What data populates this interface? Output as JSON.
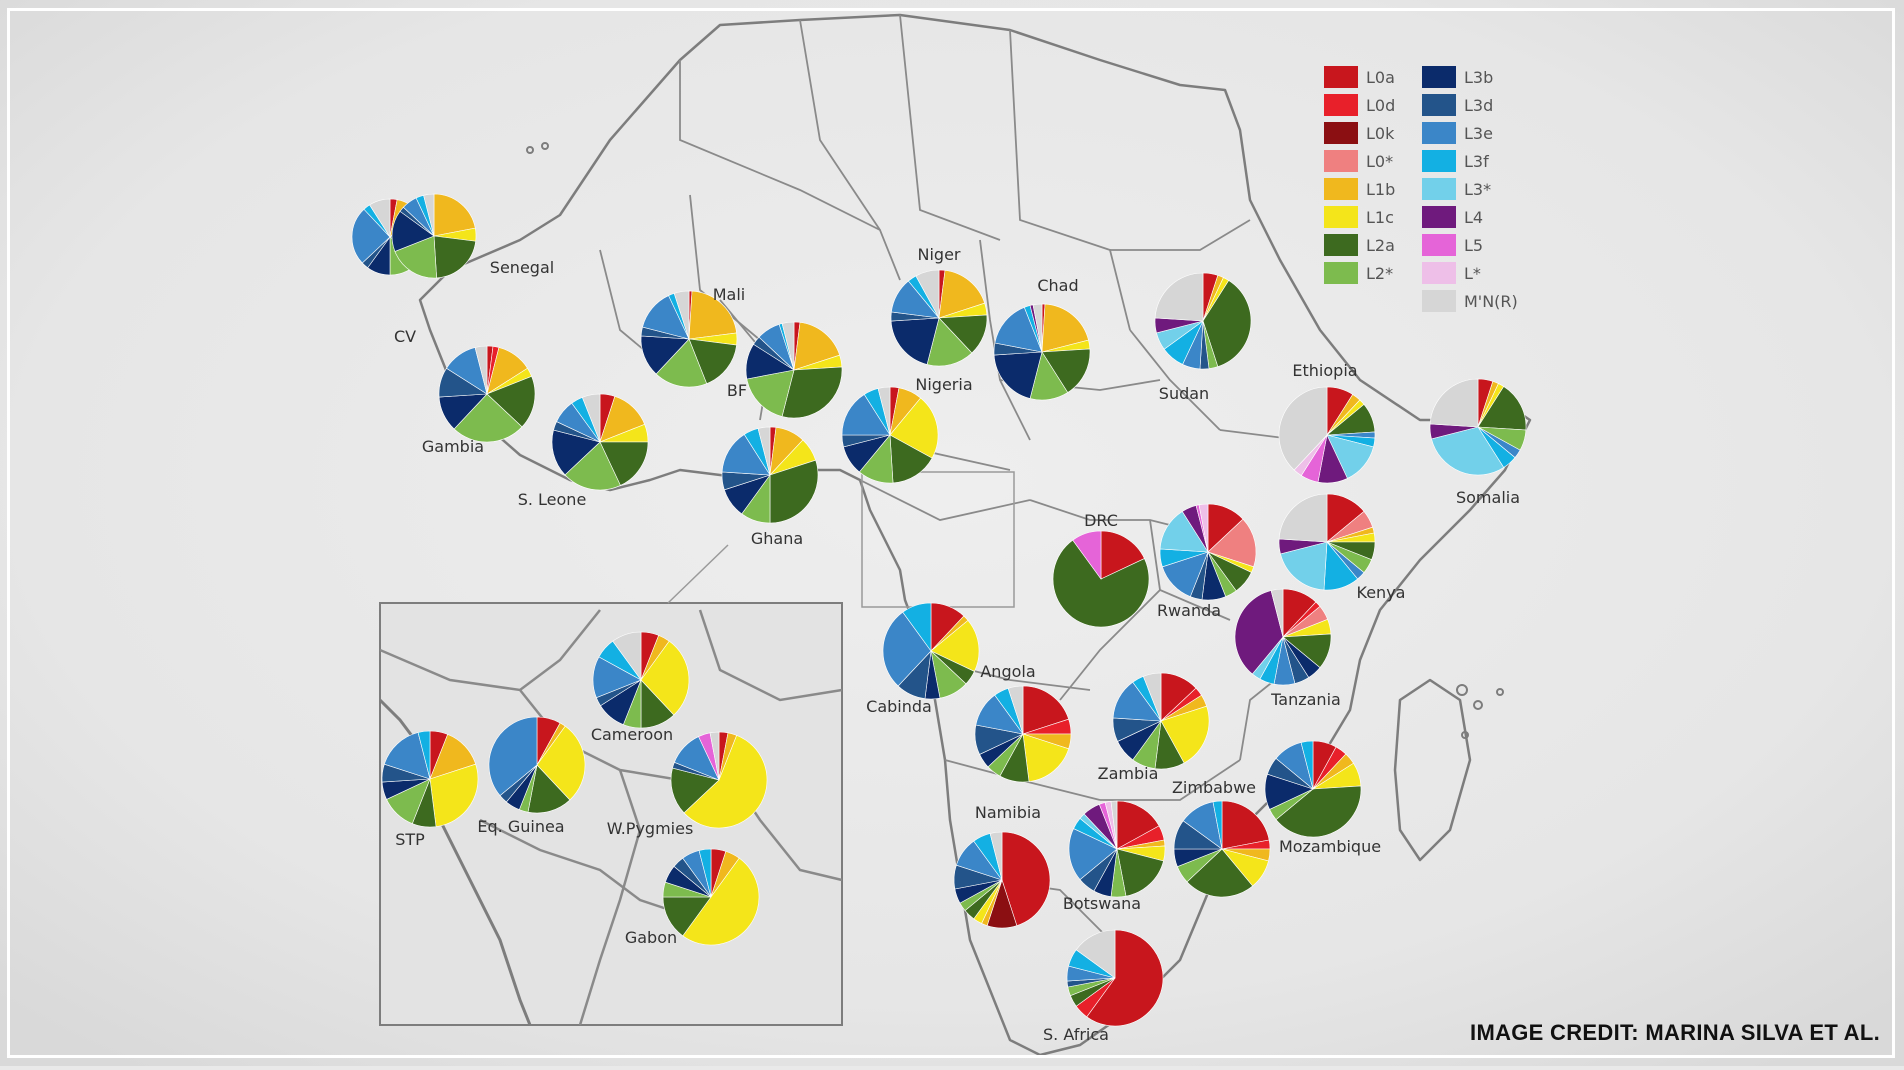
{
  "credit": "IMAGE CREDIT: MARINA SILVA ET AL.",
  "legend": [
    {
      "label": "L0a",
      "color": "#c8161d"
    },
    {
      "label": "L0d",
      "color": "#e8202a"
    },
    {
      "label": "L0k",
      "color": "#8b0f12"
    },
    {
      "label": "L0*",
      "color": "#ef8080"
    },
    {
      "label": "L1b",
      "color": "#f0b81e"
    },
    {
      "label": "L1c",
      "color": "#f4e51a"
    },
    {
      "label": "L2a",
      "color": "#3d6a1f"
    },
    {
      "label": "L2*",
      "color": "#7dbb4e"
    },
    {
      "label": "L3b",
      "color": "#0b2b6b"
    },
    {
      "label": "L3d",
      "color": "#23548a"
    },
    {
      "label": "L3e",
      "color": "#3b86c8"
    },
    {
      "label": "L3f",
      "color": "#13b0e3"
    },
    {
      "label": "L3*",
      "color": "#72d0ea"
    },
    {
      "label": "L4",
      "color": "#6f1a7d"
    },
    {
      "label": "L5",
      "color": "#e564d8"
    },
    {
      "label": "L*",
      "color": "#eebfe8"
    },
    {
      "label": "M'N(R)",
      "color": "#d6d6d6"
    }
  ],
  "regions": [
    {
      "label": "CV",
      "values": [
        3,
        0,
        0,
        0,
        10,
        5,
        17,
        15,
        10,
        3,
        25,
        3,
        0,
        0,
        0,
        0,
        9
      ]
    },
    {
      "label": "Senegal",
      "values": [
        0,
        0,
        0,
        0,
        22,
        5,
        22,
        20,
        16,
        2,
        6,
        3,
        0,
        0,
        0,
        0,
        4
      ]
    },
    {
      "label": "Gambia",
      "values": [
        2,
        2,
        0,
        0,
        12,
        3,
        18,
        25,
        12,
        10,
        12,
        0,
        0,
        0,
        0,
        0,
        4
      ]
    },
    {
      "label": "Mali",
      "values": [
        1,
        0,
        0,
        0,
        22,
        4,
        17,
        18,
        14,
        3,
        14,
        2,
        0,
        0,
        0,
        0,
        5
      ]
    },
    {
      "label": "BF",
      "values": [
        2,
        0,
        0,
        0,
        18,
        4,
        30,
        18,
        12,
        3,
        8,
        1,
        0,
        0,
        0,
        0,
        4
      ]
    },
    {
      "label": "Niger",
      "values": [
        2,
        0,
        0,
        0,
        18,
        4,
        14,
        16,
        20,
        3,
        12,
        3,
        0,
        0,
        0,
        0,
        8
      ]
    },
    {
      "label": "Chad",
      "values": [
        1,
        0,
        0,
        0,
        20,
        3,
        17,
        13,
        20,
        4,
        16,
        2,
        0,
        1,
        0,
        0,
        3
      ]
    },
    {
      "label": "S. Leone",
      "values": [
        5,
        0,
        0,
        0,
        14,
        6,
        18,
        20,
        16,
        3,
        8,
        4,
        0,
        0,
        0,
        0,
        6
      ]
    },
    {
      "label": "Ghana",
      "values": [
        2,
        0,
        0,
        0,
        10,
        8,
        30,
        10,
        10,
        6,
        15,
        5,
        0,
        0,
        0,
        0,
        4
      ]
    },
    {
      "label": "Nigeria",
      "values": [
        3,
        0,
        0,
        0,
        8,
        22,
        16,
        12,
        10,
        4,
        16,
        5,
        0,
        0,
        0,
        0,
        4
      ]
    },
    {
      "label": "Sudan",
      "values": [
        5,
        0,
        0,
        0,
        2,
        2,
        36,
        3,
        0,
        3,
        6,
        8,
        6,
        5,
        0,
        0,
        24
      ]
    },
    {
      "label": "Ethiopia",
      "values": [
        9,
        0,
        0,
        0,
        3,
        2,
        10,
        0,
        0,
        0,
        2,
        3,
        14,
        10,
        6,
        3,
        38
      ]
    },
    {
      "label": "Somalia",
      "values": [
        5,
        0,
        0,
        0,
        2,
        2,
        17,
        7,
        0,
        0,
        3,
        5,
        30,
        5,
        0,
        0,
        24
      ]
    },
    {
      "label": "DRC",
      "values": [
        18,
        0,
        0,
        0,
        0,
        0,
        72,
        0,
        0,
        0,
        0,
        0,
        0,
        0,
        10,
        0,
        0
      ]
    },
    {
      "label": "Rwanda",
      "values": [
        13,
        0,
        0,
        17,
        0,
        2,
        8,
        4,
        8,
        4,
        14,
        6,
        15,
        5,
        1,
        3,
        0
      ]
    },
    {
      "label": "Kenya",
      "values": [
        14,
        0,
        0,
        6,
        2,
        3,
        6,
        5,
        0,
        0,
        3,
        12,
        20,
        5,
        0,
        0,
        24
      ]
    },
    {
      "label": "Tanzania",
      "values": [
        12,
        2,
        0,
        5,
        0,
        5,
        12,
        0,
        5,
        5,
        7,
        5,
        3,
        35,
        0,
        0,
        4
      ]
    },
    {
      "label": "Cameroon",
      "values": [
        6,
        0,
        0,
        0,
        4,
        28,
        12,
        6,
        10,
        3,
        14,
        7,
        0,
        0,
        0,
        0,
        10
      ]
    },
    {
      "label": "STP",
      "values": [
        6,
        0,
        0,
        0,
        14,
        28,
        8,
        12,
        6,
        6,
        16,
        4,
        0,
        0,
        0,
        0,
        0
      ]
    },
    {
      "label": "Eq. Guinea",
      "values": [
        8,
        0,
        0,
        0,
        2,
        28,
        15,
        3,
        5,
        3,
        36,
        0,
        0,
        0,
        0,
        0,
        0
      ]
    },
    {
      "label": "W.Pygmies",
      "values": [
        3,
        0,
        0,
        0,
        3,
        57,
        16,
        0,
        0,
        2,
        12,
        0,
        0,
        0,
        4,
        0,
        3
      ]
    },
    {
      "label": "Gabon",
      "values": [
        5,
        0,
        0,
        0,
        5,
        50,
        15,
        5,
        6,
        4,
        6,
        4,
        0,
        0,
        0,
        0,
        0
      ]
    },
    {
      "label": "Cabinda",
      "values": [
        12,
        0,
        0,
        0,
        2,
        18,
        5,
        10,
        5,
        10,
        28,
        10,
        0,
        0,
        0,
        0,
        0
      ]
    },
    {
      "label": "Angola",
      "values": [
        20,
        5,
        0,
        0,
        5,
        18,
        10,
        5,
        5,
        10,
        12,
        5,
        0,
        0,
        0,
        0,
        5
      ]
    },
    {
      "label": "Zambia",
      "values": [
        13,
        3,
        0,
        0,
        4,
        22,
        10,
        8,
        8,
        8,
        14,
        4,
        0,
        0,
        0,
        0,
        6
      ]
    },
    {
      "label": "Mozambique",
      "values": [
        8,
        4,
        0,
        0,
        4,
        8,
        40,
        4,
        12,
        6,
        10,
        4,
        0,
        0,
        0,
        0,
        0
      ]
    },
    {
      "label": "Namibia",
      "values": [
        45,
        0,
        10,
        0,
        2,
        3,
        4,
        3,
        5,
        8,
        10,
        6,
        0,
        0,
        0,
        0,
        4
      ]
    },
    {
      "label": "Botswana",
      "values": [
        17,
        5,
        0,
        0,
        2,
        5,
        18,
        5,
        6,
        6,
        18,
        4,
        2,
        6,
        2,
        2,
        2
      ]
    },
    {
      "label": "Zimbabwe",
      "values": [
        22,
        3,
        0,
        0,
        4,
        10,
        24,
        6,
        6,
        10,
        12,
        3,
        0,
        0,
        0,
        0,
        0
      ]
    },
    {
      "label": "S. Africa",
      "values": [
        60,
        5,
        0,
        0,
        0,
        0,
        4,
        3,
        0,
        2,
        5,
        6,
        0,
        0,
        0,
        0,
        15
      ]
    }
  ]
}
